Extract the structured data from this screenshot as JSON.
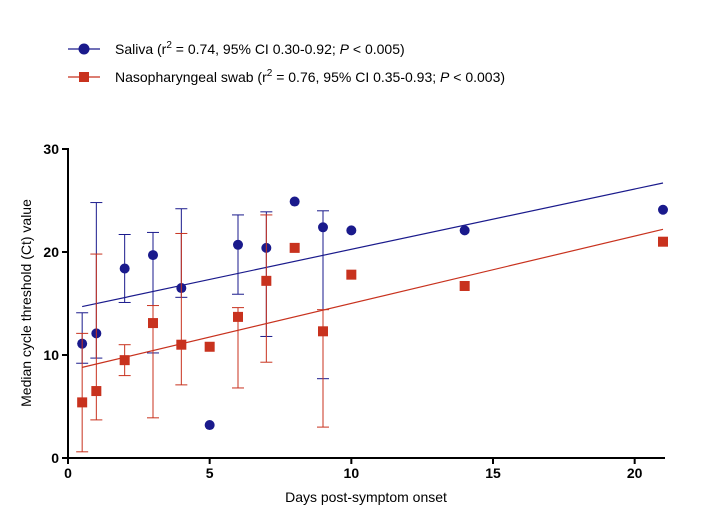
{
  "chart_data": {
    "type": "scatter",
    "xlabel": "Days post-symptom onset",
    "ylabel": "Median cycle threshold (Ct) value",
    "xlim": [
      0,
      21
    ],
    "ylim": [
      0,
      30
    ],
    "xticks": [
      0,
      5,
      10,
      15,
      20
    ],
    "yticks": [
      0,
      10,
      20,
      30
    ],
    "grid": false,
    "legend_position": "top-left",
    "series": [
      {
        "name": "Saliva",
        "legend_prefix": "Saliva (r",
        "legend_middle": " = 0.74, 95% CI  0.30-0.92; ",
        "legend_p": "P",
        "legend_suffix": " < 0.005)",
        "superscript": "2",
        "color": "#1a1a8c",
        "marker": "circle",
        "points": [
          {
            "x": 0.5,
            "y": 11.1,
            "lo": 9.2,
            "hi": 14.1
          },
          {
            "x": 1,
            "y": 12.1,
            "lo": 9.7,
            "hi": 24.8
          },
          {
            "x": 2,
            "y": 18.4,
            "lo": 15.1,
            "hi": 21.7
          },
          {
            "x": 3,
            "y": 19.7,
            "lo": 10.2,
            "hi": 21.9
          },
          {
            "x": 4,
            "y": 16.5,
            "lo": 15.6,
            "hi": 24.2
          },
          {
            "x": 5,
            "y": 3.2
          },
          {
            "x": 6,
            "y": 20.7,
            "lo": 15.9,
            "hi": 23.6
          },
          {
            "x": 7,
            "y": 20.4,
            "lo": 11.8,
            "hi": 23.9
          },
          {
            "x": 8,
            "y": 24.9
          },
          {
            "x": 9,
            "y": 22.4,
            "lo": 7.7,
            "hi": 24.0
          },
          {
            "x": 10,
            "y": 22.1
          },
          {
            "x": 14,
            "y": 22.1
          },
          {
            "x": 21,
            "y": 24.1
          }
        ],
        "trend": {
          "x0": 0.5,
          "y0": 14.7,
          "x1": 21,
          "y1": 26.7
        }
      },
      {
        "name": "Nasopharyngeal swab",
        "legend_prefix": "Nasopharyngeal swab (r",
        "legend_middle": " = 0.76, 95% CI 0.35-0.93; ",
        "legend_p": "P",
        "legend_suffix": " < 0.003)",
        "superscript": "2",
        "color": "#c8321e",
        "marker": "square",
        "points": [
          {
            "x": 0.5,
            "y": 5.4,
            "lo": 0.6,
            "hi": 12.1
          },
          {
            "x": 1,
            "y": 6.5,
            "lo": 3.7,
            "hi": 19.8
          },
          {
            "x": 2,
            "y": 9.5,
            "lo": 8.0,
            "hi": 11.0
          },
          {
            "x": 3,
            "y": 13.1,
            "lo": 3.9,
            "hi": 14.8
          },
          {
            "x": 4,
            "y": 11.0,
            "lo": 7.1,
            "hi": 21.8
          },
          {
            "x": 5,
            "y": 10.8
          },
          {
            "x": 6,
            "y": 13.7,
            "lo": 6.8,
            "hi": 14.6
          },
          {
            "x": 7,
            "y": 17.2,
            "lo": 9.3,
            "hi": 23.6
          },
          {
            "x": 8,
            "y": 20.4
          },
          {
            "x": 9,
            "y": 12.3,
            "lo": 3.0,
            "hi": 14.4
          },
          {
            "x": 10,
            "y": 17.8
          },
          {
            "x": 14,
            "y": 16.7
          },
          {
            "x": 21,
            "y": 21.0
          }
        ],
        "trend": {
          "x0": 0.5,
          "y0": 8.8,
          "x1": 21,
          "y1": 22.2
        }
      }
    ]
  }
}
